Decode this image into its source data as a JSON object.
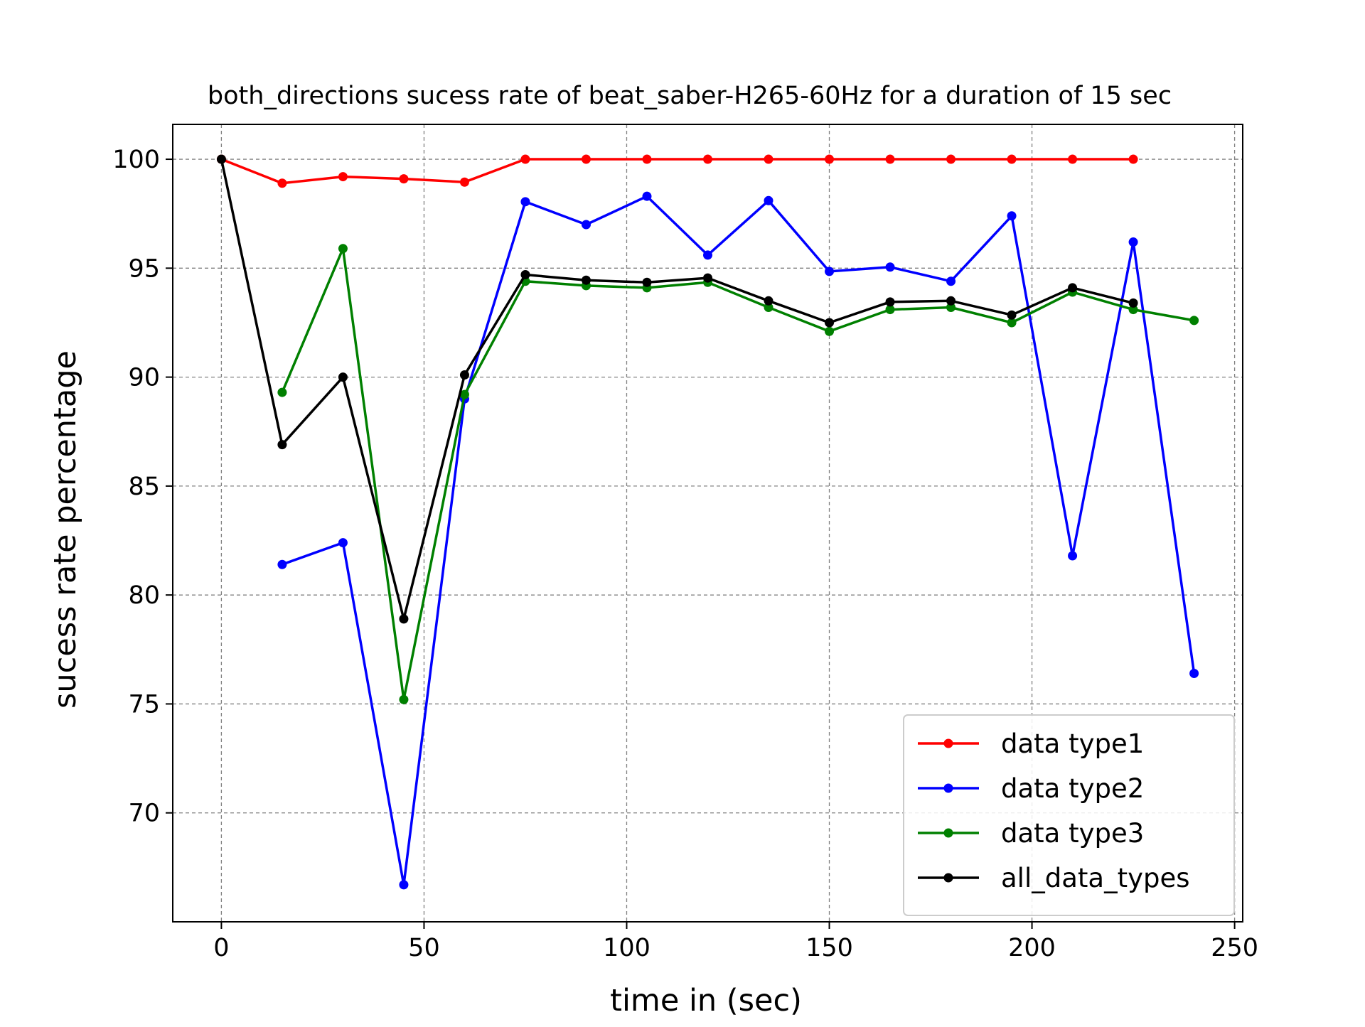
{
  "chart_data": {
    "type": "line",
    "title": "both_directions sucess rate of beat_saber-H265-60Hz for a duration of 15 sec",
    "xlabel": "time in (sec)",
    "ylabel": "sucess rate percentage",
    "xlim": [
      -12,
      252
    ],
    "ylim": [
      65,
      101.6
    ],
    "xticks": [
      0,
      50,
      100,
      150,
      200,
      250
    ],
    "yticks": [
      70,
      75,
      80,
      85,
      90,
      95,
      100
    ],
    "grid": true,
    "legend_position": "lower-right",
    "series": [
      {
        "name": "data type1",
        "color": "#ff0000",
        "points": [
          [
            0,
            100
          ],
          [
            15,
            98.9
          ],
          [
            30,
            99.2
          ],
          [
            45,
            99.1
          ],
          [
            60,
            98.95
          ],
          [
            75,
            100
          ],
          [
            90,
            100
          ],
          [
            105,
            100
          ],
          [
            120,
            100
          ],
          [
            135,
            100
          ],
          [
            150,
            100
          ],
          [
            165,
            100
          ],
          [
            180,
            100
          ],
          [
            195,
            100
          ],
          [
            210,
            100
          ],
          [
            225,
            100
          ]
        ]
      },
      {
        "name": "data type2",
        "color": "#0000ff",
        "points": [
          [
            15,
            81.4
          ],
          [
            30,
            82.4
          ],
          [
            45,
            66.7
          ],
          [
            60,
            89
          ],
          [
            75,
            98.05
          ],
          [
            90,
            97
          ],
          [
            105,
            98.3
          ],
          [
            120,
            95.6
          ],
          [
            135,
            98.1
          ],
          [
            150,
            94.85
          ],
          [
            165,
            95.05
          ],
          [
            180,
            94.4
          ],
          [
            195,
            97.4
          ],
          [
            210,
            81.8
          ],
          [
            225,
            96.2
          ],
          [
            240,
            76.4
          ]
        ]
      },
      {
        "name": "data type3",
        "color": "#008000",
        "points": [
          [
            15,
            89.3
          ],
          [
            30,
            95.9
          ],
          [
            45,
            75.2
          ],
          [
            60,
            89.2
          ],
          [
            75,
            94.4
          ],
          [
            90,
            94.2
          ],
          [
            105,
            94.1
          ],
          [
            120,
            94.35
          ],
          [
            135,
            93.2
          ],
          [
            150,
            92.1
          ],
          [
            165,
            93.1
          ],
          [
            180,
            93.2
          ],
          [
            195,
            92.5
          ],
          [
            210,
            93.9
          ],
          [
            225,
            93.1
          ],
          [
            240,
            92.6
          ]
        ]
      },
      {
        "name": "all_data_types",
        "color": "#000000",
        "points": [
          [
            0,
            100
          ],
          [
            15,
            86.9
          ],
          [
            30,
            90
          ],
          [
            45,
            78.9
          ],
          [
            60,
            90.1
          ],
          [
            75,
            94.7
          ],
          [
            90,
            94.45
          ],
          [
            105,
            94.35
          ],
          [
            120,
            94.55
          ],
          [
            135,
            93.5
          ],
          [
            150,
            92.5
          ],
          [
            165,
            93.45
          ],
          [
            180,
            93.5
          ],
          [
            195,
            92.85
          ],
          [
            210,
            94.1
          ],
          [
            225,
            93.4
          ]
        ]
      }
    ]
  }
}
